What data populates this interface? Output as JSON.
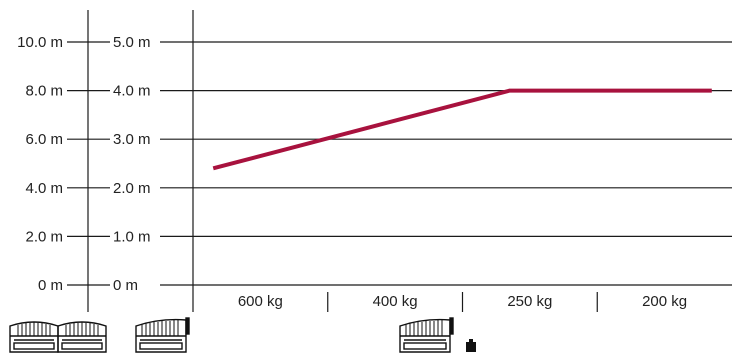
{
  "chart_data": {
    "type": "line",
    "title": "",
    "xlabel": "",
    "ylabel": "",
    "categories": [
      "600 kg",
      "400 kg",
      "250 kg",
      "200 kg"
    ],
    "y_axis_left": {
      "ticks": [
        "0 m",
        "2.0 m",
        "4.0 m",
        "6.0 m",
        "8.0 m",
        "10.0 m"
      ],
      "tick_values": [
        0,
        2,
        4,
        6,
        8,
        10
      ],
      "ylim": [
        0,
        10
      ]
    },
    "y_axis_right": {
      "ticks": [
        "0 m",
        "1.0 m",
        "2.0 m",
        "3.0 m",
        "4.0 m",
        "5.0 m"
      ],
      "tick_values": [
        0,
        1,
        2,
        3,
        4,
        5
      ],
      "ylim": [
        0,
        5
      ]
    },
    "series": [
      {
        "color": "#a8123e",
        "axis": "right",
        "points": [
          {
            "x": 0.15,
            "y": 2.4
          },
          {
            "x": 2.35,
            "y": 4.0
          },
          {
            "x": 3.85,
            "y": 4.0
          }
        ]
      }
    ],
    "grid": true,
    "colors": {
      "line": "#a8123e",
      "axis": "#1a1a1a",
      "text": "#222222"
    },
    "icons": [
      "double-swing-gate-icon",
      "single-swing-gate-icon",
      "single-swing-gate-with-weight-icon"
    ]
  }
}
